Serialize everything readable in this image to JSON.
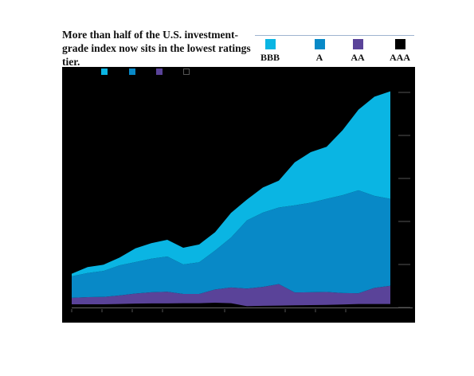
{
  "title": "More than half of the U.S. investment-grade index now sits in the lowest ratings tier.",
  "colors": {
    "bbb": "#0ab5e3",
    "a": "#0889c7",
    "aa": "#5a4399",
    "aaa": "#000000",
    "panel": "#000000"
  },
  "legend": [
    {
      "name": "BBB",
      "color": "#0ab5e3"
    },
    {
      "name": "A",
      "color": "#0889c7"
    },
    {
      "name": "AA",
      "color": "#5a4399"
    },
    {
      "name": "AAA",
      "color": "#000000"
    }
  ],
  "chart_data": {
    "type": "area",
    "stacked": true,
    "title": "More than half of the U.S. investment-grade index now sits in the lowest ratings tier.",
    "xlabel": "",
    "ylabel": "",
    "x": [
      0,
      5,
      10,
      15,
      20,
      25,
      30,
      35,
      40,
      45,
      50,
      55,
      60,
      65,
      70,
      75,
      80,
      85,
      90,
      95,
      100
    ],
    "ylim": [
      0,
      100
    ],
    "grid": false,
    "legend_position": "top-right",
    "series": [
      {
        "name": "AAA",
        "color": "#000000",
        "values": [
          1.5,
          1.5,
          1.5,
          1.6,
          1.8,
          1.9,
          1.9,
          2.0,
          2.0,
          2.2,
          2.0,
          0.6,
          0.8,
          0.9,
          1.0,
          1.1,
          1.2,
          1.4,
          1.6,
          1.6,
          1.6
        ]
      },
      {
        "name": "AA",
        "color": "#5a4399",
        "values": [
          3.0,
          3.3,
          3.4,
          4.0,
          4.7,
          5.2,
          5.4,
          4.3,
          4.3,
          6.2,
          7.3,
          8.2,
          8.8,
          10.0,
          6.0,
          6.0,
          6.0,
          5.3,
          5.0,
          7.5,
          8.5
        ]
      },
      {
        "name": "A",
        "color": "#0889c7",
        "values": [
          10.0,
          11.2,
          12.1,
          14.0,
          14.6,
          15.6,
          16.4,
          13.7,
          14.7,
          18.1,
          23.2,
          31.7,
          34.5,
          35.6,
          40.5,
          41.6,
          43.3,
          45.5,
          47.9,
          42.8,
          40.4
        ]
      },
      {
        "name": "BBB",
        "color": "#0ab5e3",
        "values": [
          1.2,
          2.8,
          2.9,
          3.6,
          6.4,
          7.2,
          7.8,
          7.8,
          8.3,
          8.5,
          11.5,
          9.7,
          11.7,
          12.5,
          20.0,
          23.5,
          24.2,
          30.2,
          37.5,
          46.1,
          50.0
        ]
      }
    ]
  }
}
